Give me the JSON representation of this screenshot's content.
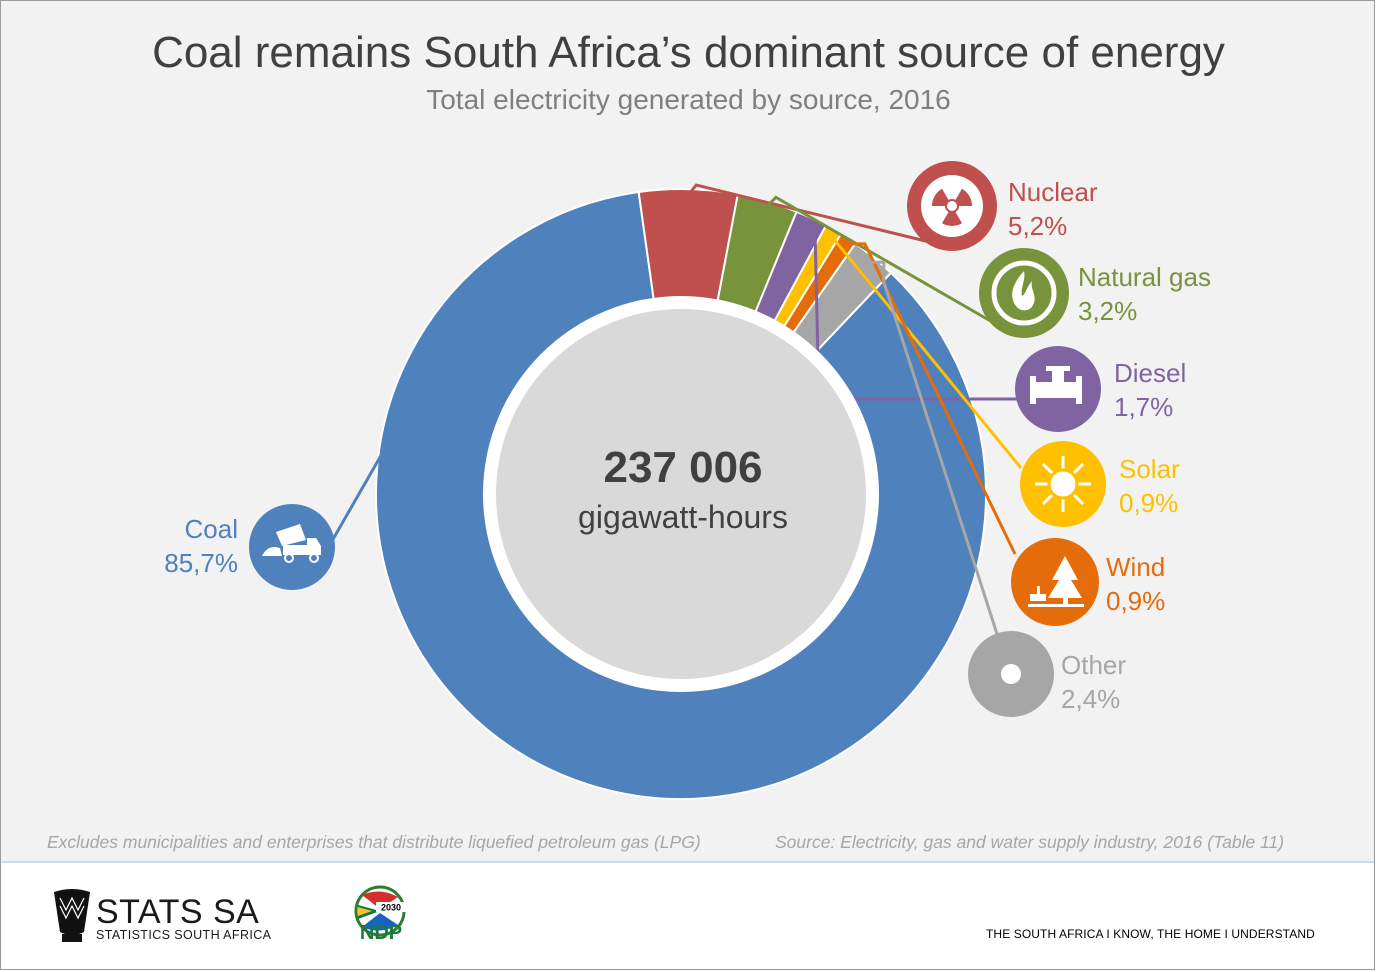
{
  "header": {
    "title": "Coal remains South Africa’s dominant source of energy",
    "subtitle": "Total electricity generated by source, 2016"
  },
  "center": {
    "value": "237 006",
    "unit": "gigawatt-hours"
  },
  "labels": {
    "coal": {
      "name": "Coal",
      "value": "85,7%"
    },
    "nuclear": {
      "name": "Nuclear",
      "value": "5,2%"
    },
    "natural_gas": {
      "name": "Natural gas",
      "value": "3,2%"
    },
    "diesel": {
      "name": "Diesel",
      "value": "1,7%"
    },
    "solar": {
      "name": "Solar",
      "value": "0,9%"
    },
    "wind": {
      "name": "Wind",
      "value": "0,9%"
    },
    "other": {
      "name": "Other",
      "value": "2,4%"
    }
  },
  "chart_data": {
    "type": "pie",
    "title": "Coal remains South Africa’s dominant source of energy",
    "subtitle": "Total electricity generated by source, 2016",
    "total": 237006,
    "total_unit": "gigawatt-hours",
    "categories": [
      "Coal",
      "Nuclear",
      "Natural gas",
      "Diesel",
      "Solar",
      "Wind",
      "Other"
    ],
    "values": [
      85.7,
      5.2,
      3.2,
      1.7,
      0.9,
      0.9,
      2.4
    ],
    "colors": [
      "#4f81bd",
      "#c0504d",
      "#77933c",
      "#8064a2",
      "#ffc000",
      "#e46c0a",
      "#a6a6a6"
    ],
    "icons": [
      "dump-truck-icon",
      "radiation-icon",
      "flame-icon",
      "pipe-valve-icon",
      "sun-icon",
      "wind-tree-icon",
      "other-dot-icon"
    ]
  },
  "notes": {
    "exclusion": "Excludes municipalities and enterprises that distribute liquefied petroleum gas (LPG)",
    "source": "Source: Electricity, gas and water supply industry, 2016 (Table 11)"
  },
  "footer": {
    "brand": "STATS SA",
    "brand_sub": "STATISTICS SOUTH AFRICA",
    "ndp_year": "2030",
    "ndp_label": "NDP",
    "tagline": "THE SOUTH AFRICA I KNOW, THE HOME I UNDERSTAND"
  }
}
